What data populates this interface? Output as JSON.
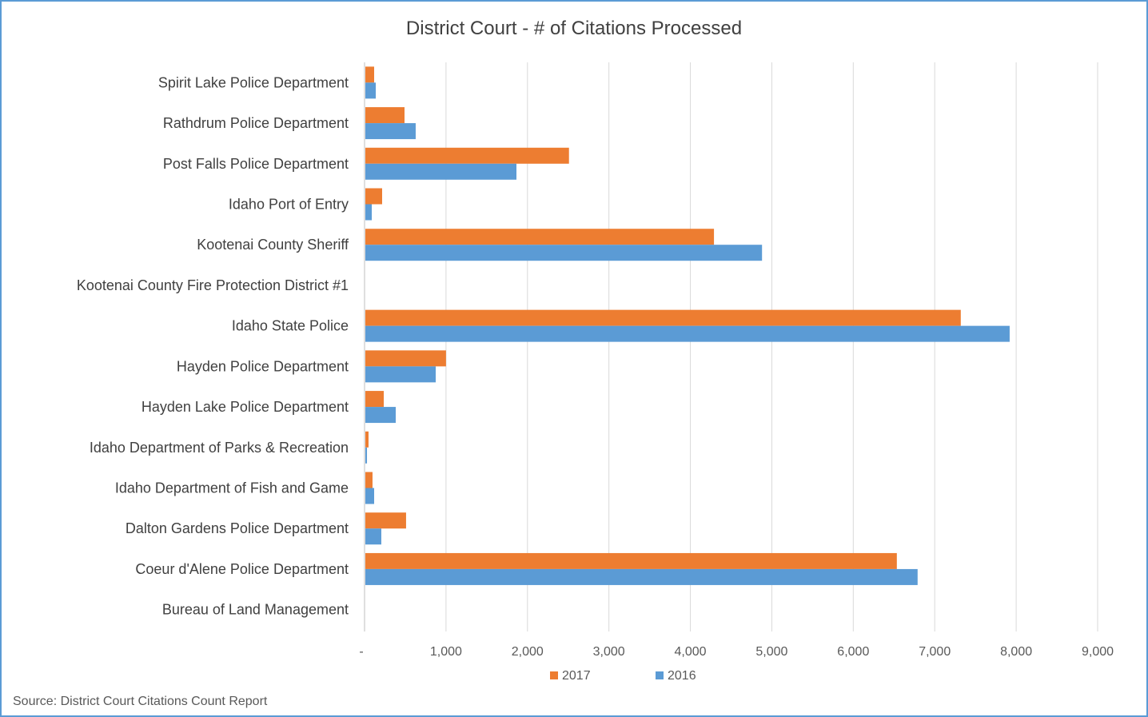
{
  "chart_data": {
    "type": "bar",
    "orientation": "horizontal",
    "title": "District Court - # of Citations Processed",
    "xlabel": "",
    "ylabel": "",
    "xlim": [
      0,
      9000
    ],
    "x_ticks": [
      "-",
      "1,000",
      "2,000",
      "3,000",
      "4,000",
      "5,000",
      "6,000",
      "7,000",
      "8,000",
      "9,000"
    ],
    "grid": "vertical",
    "legend_position": "bottom",
    "categories": [
      "Spirit Lake Police Department",
      "Rathdrum Police Department",
      "Post Falls Police Department",
      "Idaho Port of Entry",
      "Kootenai County Sheriff",
      "Kootenai County Fire Protection District #1",
      "Idaho State Police",
      "Hayden Police Department",
      "Hayden Lake Police Department",
      "Idaho Department of Parks & Recreation",
      "Idaho Department of Fish and Game",
      "Dalton Gardens Police Department",
      "Coeur d'Alene Police Department",
      "Bureau of Land Management"
    ],
    "series": [
      {
        "name": "2017",
        "color": "#ed7d31",
        "values": [
          108,
          481,
          2500,
          206,
          4280,
          0,
          7310,
          990,
          226,
          39,
          88,
          500,
          6525,
          0
        ]
      },
      {
        "name": "2016",
        "color": "#5b9bd5",
        "values": [
          128,
          618,
          1855,
          79,
          4870,
          0,
          7910,
          864,
          373,
          20,
          108,
          196,
          6780,
          0
        ]
      }
    ],
    "source": "Source:  District Court Citations Count Report"
  }
}
